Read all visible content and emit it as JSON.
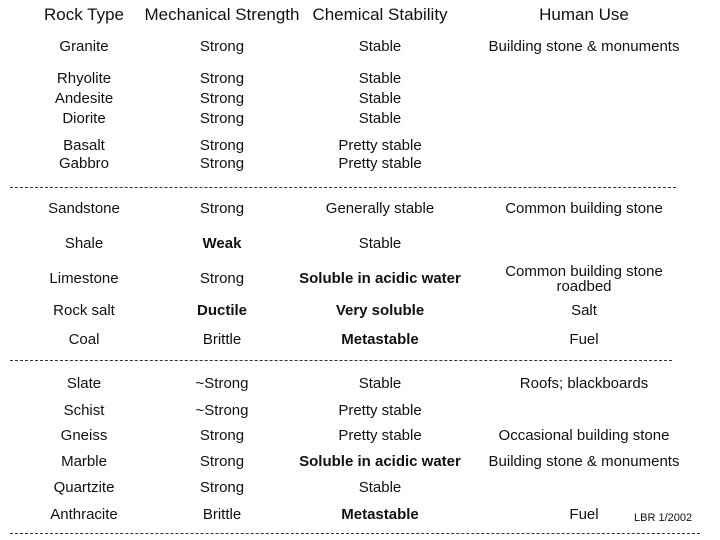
{
  "header": [
    "Rock Type",
    "Mechanical Strength",
    "Chemical Stability",
    "Human Use"
  ],
  "groups": [
    [
      [
        "Granite",
        "Strong",
        "Stable",
        "Building stone & monuments"
      ],
      [
        "Rhyolite",
        "Strong",
        "Stable",
        null
      ],
      [
        "Andesite",
        "Strong",
        "Stable",
        null
      ],
      [
        "Diorite",
        "Strong",
        "Stable",
        null
      ],
      [
        "Basalt",
        "Strong",
        "Pretty stable",
        null
      ],
      [
        "Gabbro",
        "Strong",
        "Pretty stable",
        null
      ]
    ],
    [
      [
        "Sandstone",
        "Strong",
        "Generally stable",
        "Common building stone"
      ],
      [
        "Shale",
        "Weak",
        "Stable",
        null
      ],
      [
        "Limestone",
        "Strong",
        "Soluble in acidic water",
        [
          "Common building stone",
          "roadbed"
        ]
      ],
      [
        "Rock salt",
        "Ductile",
        "Very soluble",
        "Salt"
      ],
      [
        "Coal",
        "Brittle",
        "Metastable",
        "Fuel"
      ]
    ],
    [
      [
        "Slate",
        "~Strong",
        "Stable",
        "Roofs; blackboards"
      ],
      [
        "Schist",
        "~Strong",
        "Pretty stable",
        null
      ],
      [
        "Gneiss",
        "Strong",
        "Pretty stable",
        "Occasional building stone"
      ],
      [
        "Marble",
        "Strong",
        "Soluble in acidic water",
        "Building stone & monuments"
      ],
      [
        "Quartzite",
        "Strong",
        "Stable",
        null
      ],
      [
        "Anthracite",
        "Brittle",
        "Metastable",
        "Fuel"
      ]
    ]
  ],
  "footer": "LBR 1/2002"
}
